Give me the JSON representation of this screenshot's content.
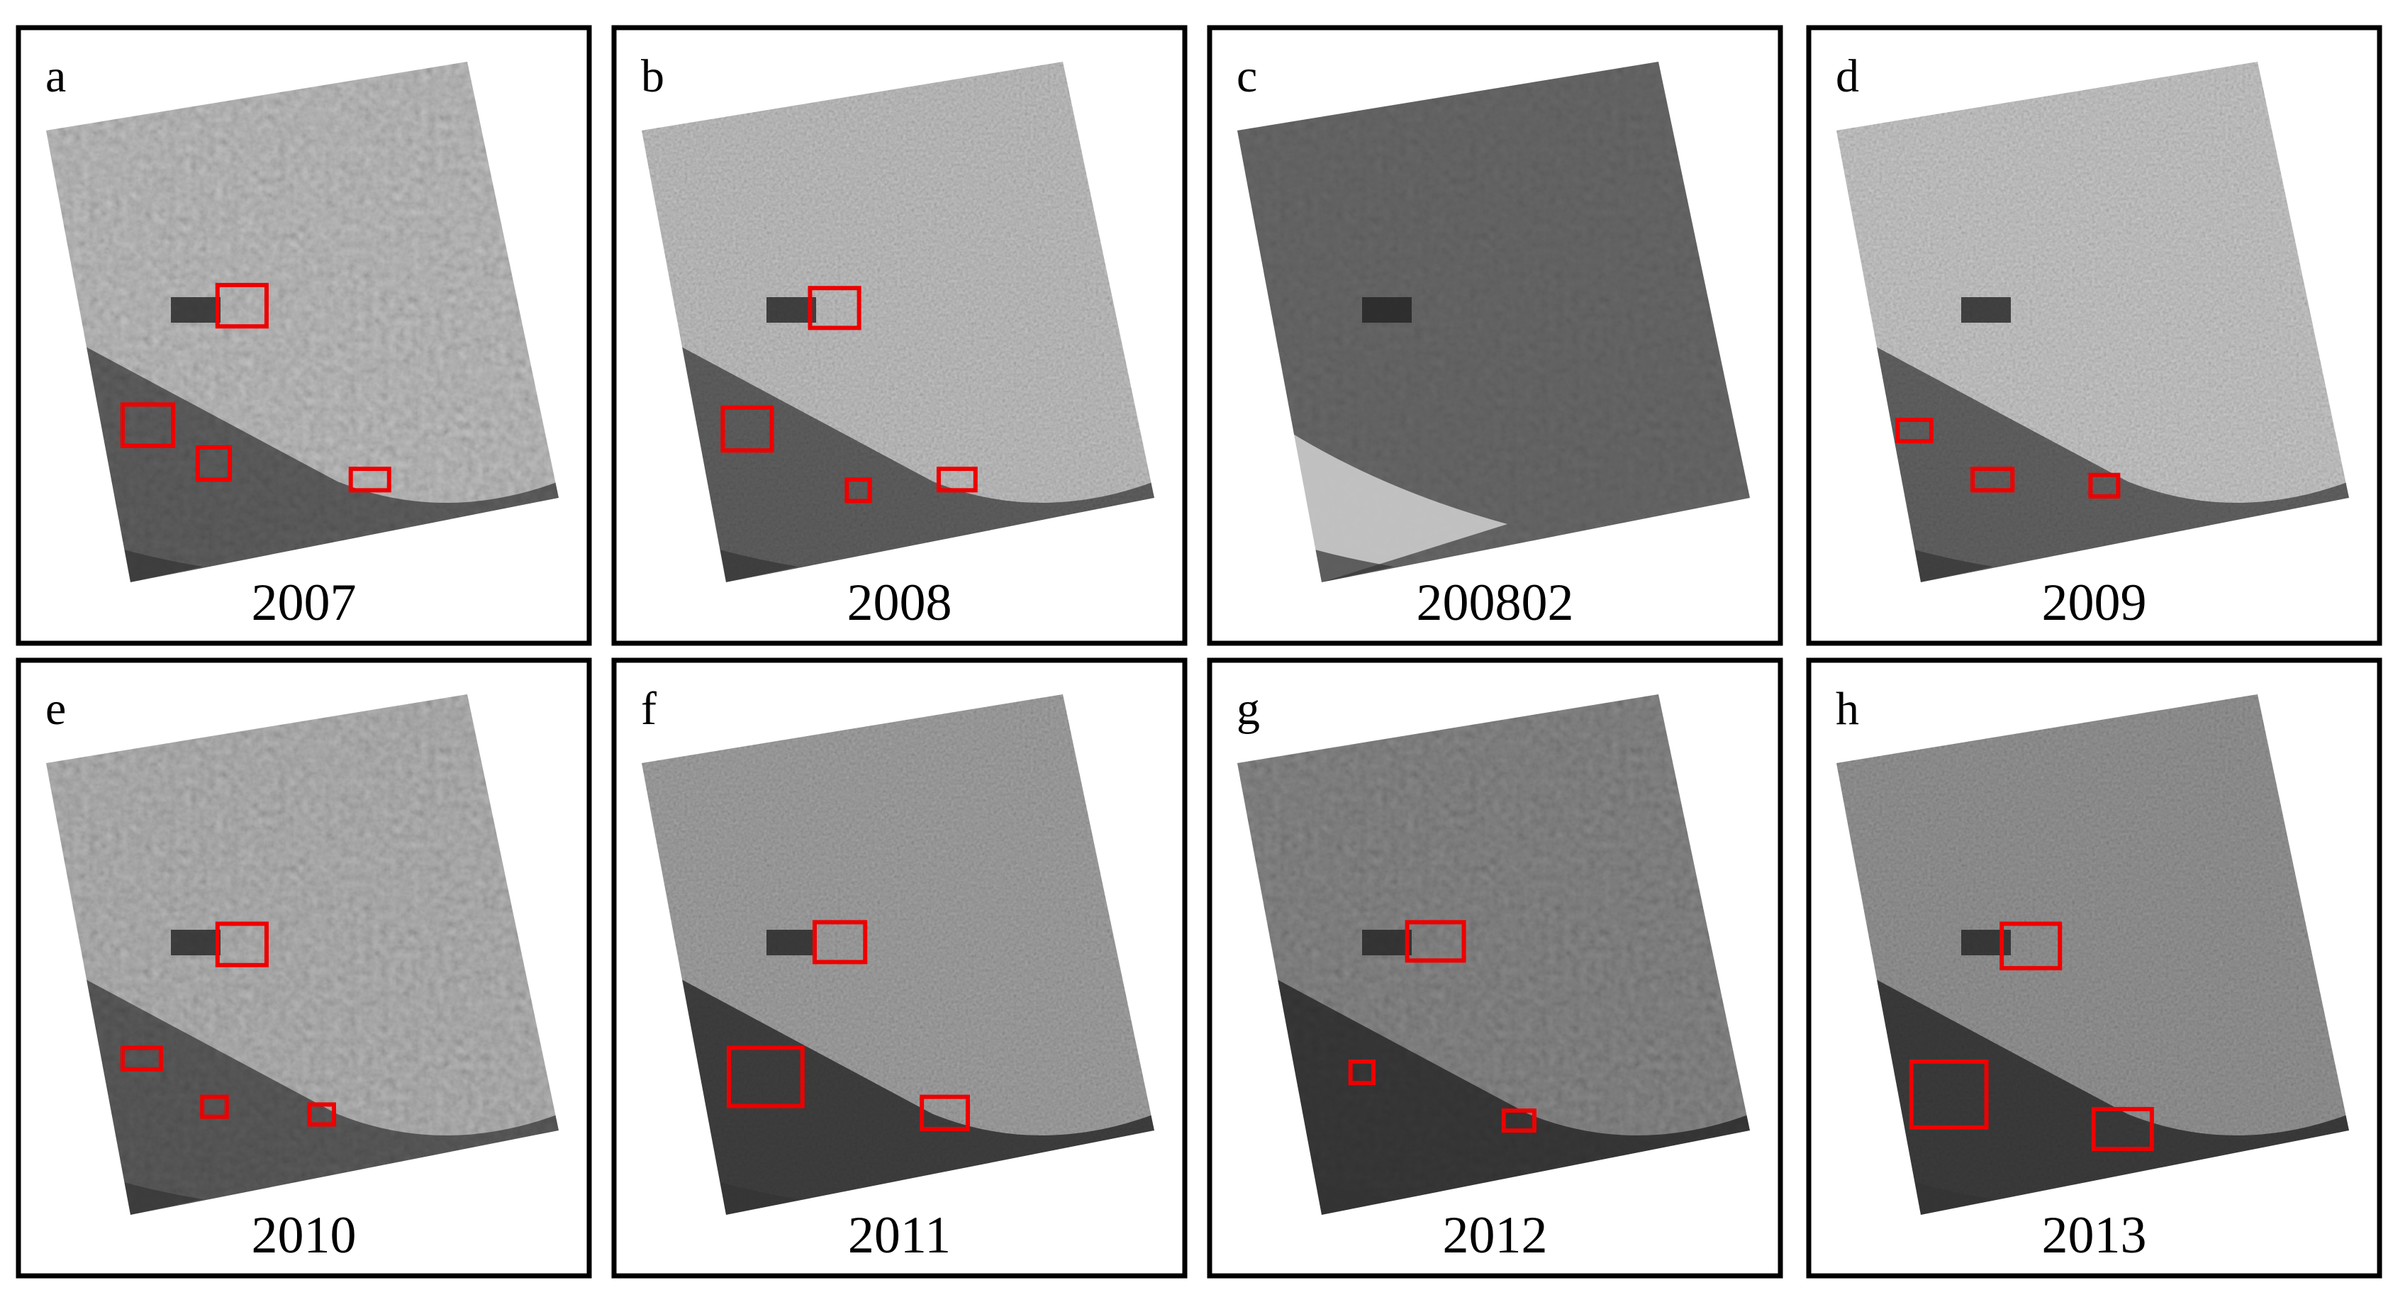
{
  "panels": [
    {
      "letter": "a",
      "caption": "2007"
    },
    {
      "letter": "b",
      "caption": "2008"
    },
    {
      "letter": "c",
      "caption": "200802"
    },
    {
      "letter": "d",
      "caption": "2009"
    },
    {
      "letter": "e",
      "caption": "2010"
    },
    {
      "letter": "f",
      "caption": "2011"
    },
    {
      "letter": "g",
      "caption": "2012"
    },
    {
      "letter": "h",
      "caption": "2013"
    }
  ]
}
